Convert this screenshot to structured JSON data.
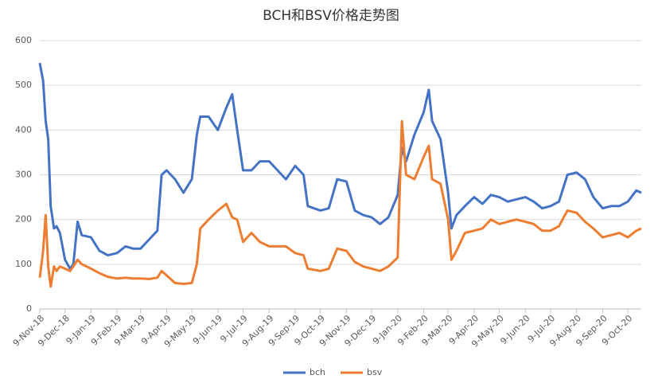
{
  "chart_data": {
    "type": "line",
    "title": "BCH和BSV价格走势图",
    "x": [
      "2018-11-09",
      "2018-11-13",
      "2018-11-16",
      "2018-11-19",
      "2018-11-22",
      "2018-11-26",
      "2018-11-29",
      "2018-12-03",
      "2018-12-09",
      "2018-12-15",
      "2018-12-19",
      "2018-12-24",
      "2018-12-29",
      "2019-01-09",
      "2019-01-19",
      "2019-01-29",
      "2019-02-09",
      "2019-02-19",
      "2019-02-28",
      "2019-03-09",
      "2019-03-19",
      "2019-03-29",
      "2019-04-03",
      "2019-04-09",
      "2019-04-19",
      "2019-04-29",
      "2019-05-09",
      "2019-05-15",
      "2019-05-19",
      "2019-05-29",
      "2019-06-09",
      "2019-06-19",
      "2019-06-26",
      "2019-07-02",
      "2019-07-09",
      "2019-07-19",
      "2019-07-29",
      "2019-08-09",
      "2019-08-19",
      "2019-08-29",
      "2019-09-09",
      "2019-09-19",
      "2019-09-24",
      "2019-10-09",
      "2019-10-19",
      "2019-10-29",
      "2019-11-09",
      "2019-11-19",
      "2019-11-29",
      "2019-12-09",
      "2019-12-19",
      "2019-12-29",
      "2020-01-09",
      "2020-01-14",
      "2020-01-19",
      "2020-01-29",
      "2020-02-09",
      "2020-02-15",
      "2020-02-19",
      "2020-02-29",
      "2020-03-09",
      "2020-03-13",
      "2020-03-19",
      "2020-03-29",
      "2020-04-09",
      "2020-04-19",
      "2020-04-29",
      "2020-05-09",
      "2020-05-19",
      "2020-05-29",
      "2020-06-09",
      "2020-06-19",
      "2020-06-29",
      "2020-07-09",
      "2020-07-19",
      "2020-07-29",
      "2020-08-09",
      "2020-08-19",
      "2020-08-29",
      "2020-09-09",
      "2020-09-19",
      "2020-09-29",
      "2020-10-09",
      "2020-10-19",
      "2020-10-25"
    ],
    "series": [
      {
        "name": "bch",
        "color": "#4472c4",
        "values": [
          550,
          510,
          420,
          380,
          230,
          180,
          185,
          170,
          110,
          90,
          100,
          195,
          165,
          160,
          130,
          120,
          125,
          140,
          135,
          135,
          155,
          175,
          300,
          310,
          290,
          260,
          290,
          390,
          430,
          430,
          400,
          450,
          480,
          400,
          310,
          310,
          330,
          330,
          310,
          290,
          320,
          300,
          230,
          220,
          225,
          290,
          285,
          220,
          210,
          205,
          190,
          205,
          255,
          360,
          330,
          390,
          440,
          490,
          420,
          380,
          260,
          180,
          210,
          230,
          250,
          235,
          255,
          250,
          240,
          245,
          250,
          240,
          225,
          230,
          240,
          300,
          305,
          290,
          250,
          225,
          230,
          230,
          240,
          265,
          260
        ]
      },
      {
        "name": "bsv",
        "color": "#ed7d31",
        "values": [
          70,
          130,
          210,
          95,
          50,
          95,
          85,
          95,
          90,
          85,
          95,
          110,
          100,
          90,
          80,
          72,
          68,
          70,
          68,
          68,
          67,
          70,
          85,
          75,
          58,
          56,
          58,
          100,
          180,
          200,
          220,
          235,
          205,
          200,
          150,
          170,
          150,
          140,
          140,
          140,
          125,
          120,
          90,
          85,
          90,
          135,
          130,
          105,
          95,
          90,
          85,
          95,
          115,
          420,
          300,
          290,
          340,
          365,
          290,
          280,
          200,
          110,
          130,
          170,
          175,
          180,
          200,
          190,
          195,
          200,
          195,
          190,
          175,
          175,
          185,
          220,
          215,
          195,
          180,
          160,
          165,
          170,
          160,
          175,
          180
        ]
      }
    ],
    "xlim": [
      "2018-11-09",
      "2020-10-25"
    ],
    "xticks": [
      {
        "value": "2018-11-09",
        "label": "9-Nov-18"
      },
      {
        "value": "2018-12-09",
        "label": "9-Dec-18"
      },
      {
        "value": "2019-01-09",
        "label": "9-Jan-19"
      },
      {
        "value": "2019-02-09",
        "label": "9-Feb-19"
      },
      {
        "value": "2019-03-09",
        "label": "9-Mar-19"
      },
      {
        "value": "2019-04-09",
        "label": "9-Apr-19"
      },
      {
        "value": "2019-05-09",
        "label": "9-May-19"
      },
      {
        "value": "2019-06-09",
        "label": "9-Jun-19"
      },
      {
        "value": "2019-07-09",
        "label": "9-Jul-19"
      },
      {
        "value": "2019-08-09",
        "label": "9-Aug-19"
      },
      {
        "value": "2019-09-09",
        "label": "9-Sep-19"
      },
      {
        "value": "2019-10-09",
        "label": "9-Oct-19"
      },
      {
        "value": "2019-11-09",
        "label": "9-Nov-19"
      },
      {
        "value": "2019-12-09",
        "label": "9-Dec-19"
      },
      {
        "value": "2020-01-09",
        "label": "9-Jan-20"
      },
      {
        "value": "2020-02-09",
        "label": "9-Feb-20"
      },
      {
        "value": "2020-03-09",
        "label": "9-Mar-20"
      },
      {
        "value": "2020-04-09",
        "label": "9-Apr-20"
      },
      {
        "value": "2020-05-09",
        "label": "9-May-20"
      },
      {
        "value": "2020-06-09",
        "label": "9-Jun-20"
      },
      {
        "value": "2020-07-09",
        "label": "9-Jul-20"
      },
      {
        "value": "2020-08-09",
        "label": "9-Aug-20"
      },
      {
        "value": "2020-09-09",
        "label": "9-Sep-20"
      },
      {
        "value": "2020-10-09",
        "label": "9-Oct-20"
      }
    ],
    "ylim": [
      0,
      600
    ],
    "yticks": [
      0,
      100,
      200,
      300,
      400,
      500,
      600
    ],
    "grid": true,
    "legend": "bottom"
  }
}
